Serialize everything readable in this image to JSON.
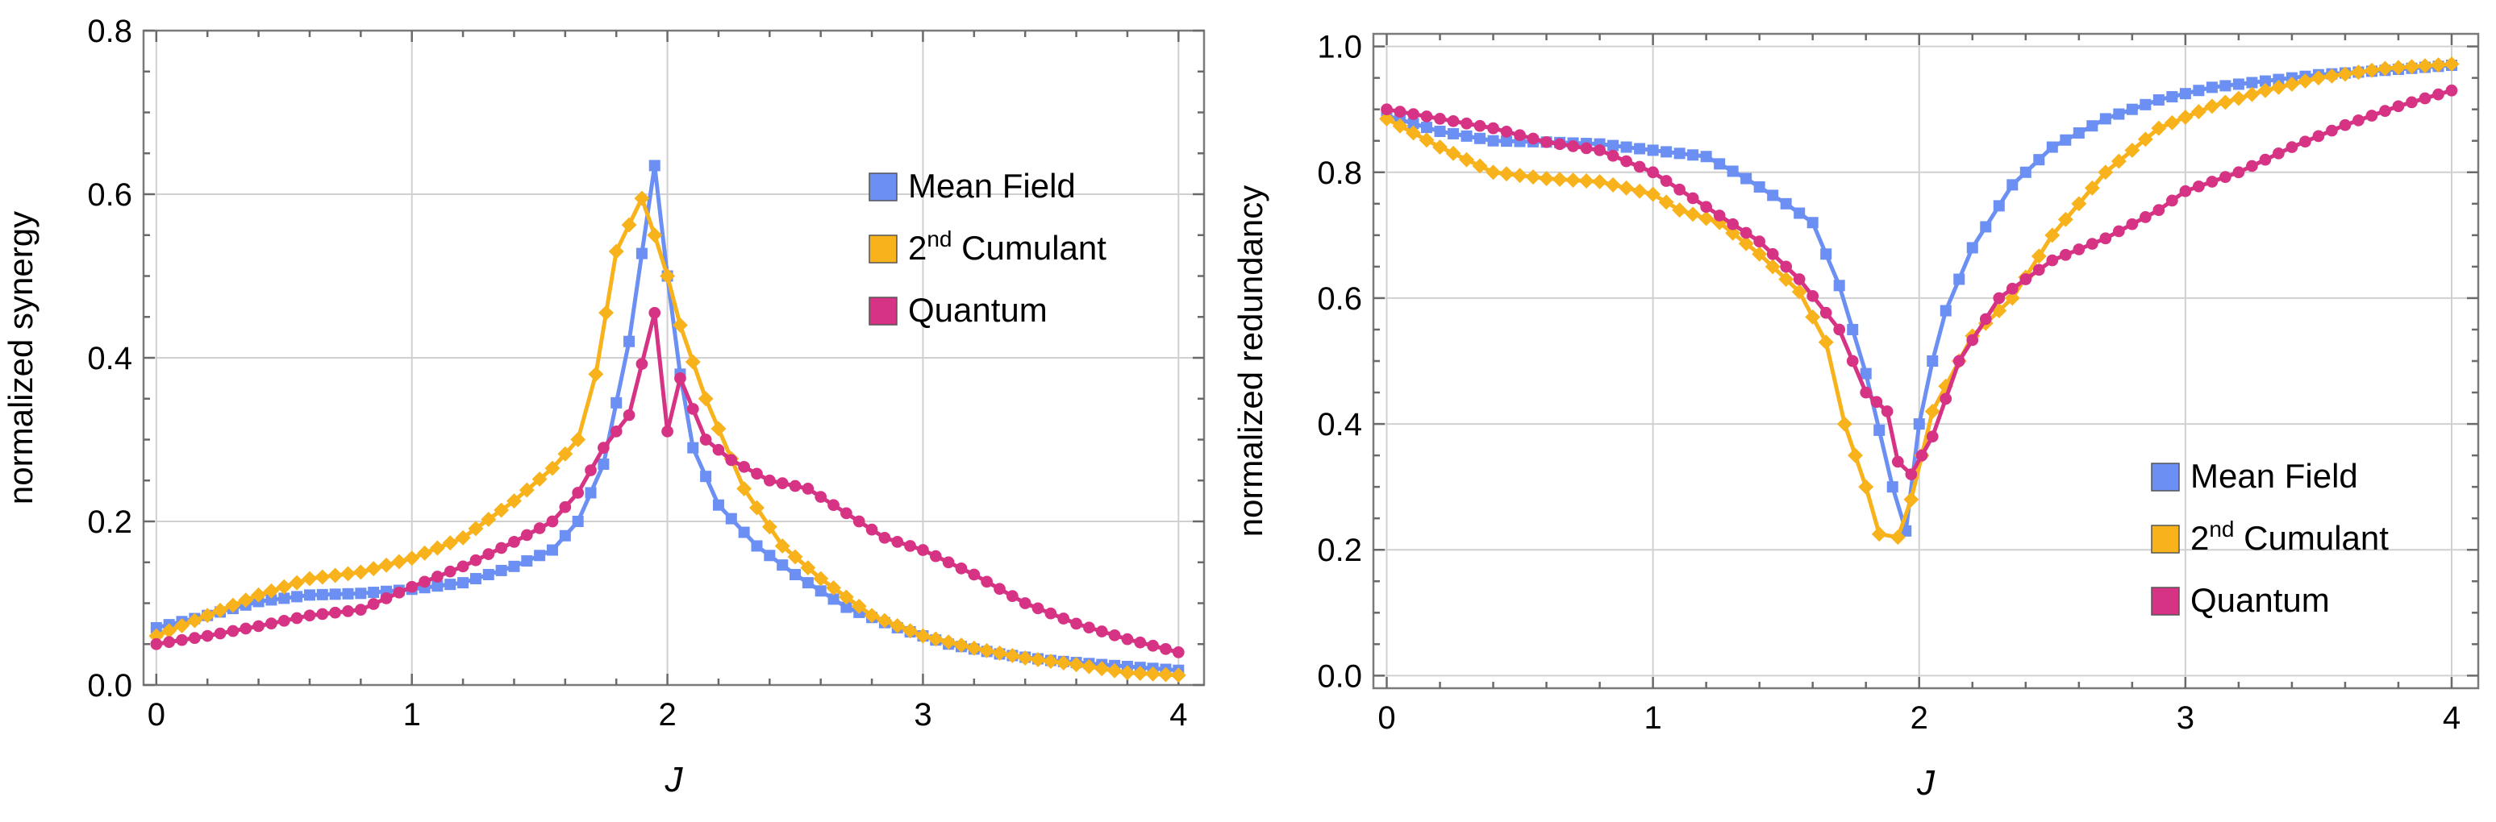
{
  "colors": {
    "mean_field": "#6b8ff2",
    "cumulant": "#f7b21c",
    "quantum": "#d63384"
  },
  "chart_data": [
    {
      "type": "line",
      "ylabel": "normalized synergy",
      "xlabel": "J",
      "xlim": [
        -0.05,
        4.1
      ],
      "ylim": [
        0,
        0.8
      ],
      "xticks": [
        "0",
        "1",
        "2",
        "3",
        "4"
      ],
      "yticks": [
        "0.0",
        "0.2",
        "0.4",
        "0.6",
        "0.8"
      ],
      "legend_position": "right",
      "legend": [
        {
          "label": "Mean Field",
          "sup": "",
          "rest": ""
        },
        {
          "label": "2",
          "sup": "nd",
          "rest": " Cumulant"
        },
        {
          "label": "Quantum",
          "sup": "",
          "rest": ""
        }
      ],
      "series": [
        {
          "name": "Mean Field",
          "marker": "square",
          "points": [
            [
              0,
              0.07
            ],
            [
              0.2,
              0.085
            ],
            [
              0.4,
              0.102
            ],
            [
              0.6,
              0.11
            ],
            [
              0.8,
              0.112
            ],
            [
              1.0,
              0.117
            ],
            [
              1.2,
              0.125
            ],
            [
              1.4,
              0.145
            ],
            [
              1.55,
              0.165
            ],
            [
              1.65,
              0.2
            ],
            [
              1.75,
              0.27
            ],
            [
              1.85,
              0.42
            ],
            [
              1.95,
              0.635
            ],
            [
              2.0,
              0.5
            ],
            [
              2.05,
              0.38
            ],
            [
              2.1,
              0.29
            ],
            [
              2.2,
              0.22
            ],
            [
              2.35,
              0.17
            ],
            [
              2.5,
              0.135
            ],
            [
              2.7,
              0.095
            ],
            [
              2.9,
              0.07
            ],
            [
              3.1,
              0.05
            ],
            [
              3.3,
              0.038
            ],
            [
              3.5,
              0.03
            ],
            [
              3.7,
              0.025
            ],
            [
              4.0,
              0.018
            ]
          ]
        },
        {
          "name": "2nd Cumulant",
          "marker": "diamond",
          "points": [
            [
              0,
              0.06
            ],
            [
              0.2,
              0.085
            ],
            [
              0.4,
              0.11
            ],
            [
              0.6,
              0.13
            ],
            [
              0.8,
              0.138
            ],
            [
              1.0,
              0.155
            ],
            [
              1.2,
              0.18
            ],
            [
              1.4,
              0.225
            ],
            [
              1.55,
              0.265
            ],
            [
              1.65,
              0.3
            ],
            [
              1.72,
              0.38
            ],
            [
              1.8,
              0.53
            ],
            [
              1.9,
              0.595
            ],
            [
              1.95,
              0.55
            ],
            [
              2.0,
              0.5
            ],
            [
              2.05,
              0.44
            ],
            [
              2.15,
              0.35
            ],
            [
              2.3,
              0.24
            ],
            [
              2.45,
              0.17
            ],
            [
              2.6,
              0.13
            ],
            [
              2.8,
              0.085
            ],
            [
              3.0,
              0.06
            ],
            [
              3.2,
              0.045
            ],
            [
              3.4,
              0.033
            ],
            [
              3.6,
              0.025
            ],
            [
              3.8,
              0.015
            ],
            [
              4.0,
              0.012
            ]
          ]
        },
        {
          "name": "Quantum",
          "marker": "circle",
          "points": [
            [
              0,
              0.05
            ],
            [
              0.2,
              0.06
            ],
            [
              0.4,
              0.072
            ],
            [
              0.6,
              0.085
            ],
            [
              0.8,
              0.092
            ],
            [
              1.0,
              0.12
            ],
            [
              1.2,
              0.145
            ],
            [
              1.4,
              0.175
            ],
            [
              1.55,
              0.2
            ],
            [
              1.65,
              0.235
            ],
            [
              1.75,
              0.29
            ],
            [
              1.85,
              0.33
            ],
            [
              1.95,
              0.455
            ],
            [
              2.0,
              0.31
            ],
            [
              2.05,
              0.375
            ],
            [
              2.15,
              0.3
            ],
            [
              2.25,
              0.275
            ],
            [
              2.4,
              0.25
            ],
            [
              2.55,
              0.24
            ],
            [
              2.7,
              0.21
            ],
            [
              2.85,
              0.18
            ],
            [
              3.0,
              0.165
            ],
            [
              3.2,
              0.135
            ],
            [
              3.4,
              0.1
            ],
            [
              3.6,
              0.075
            ],
            [
              3.8,
              0.056
            ],
            [
              4.0,
              0.04
            ]
          ]
        }
      ]
    },
    {
      "type": "line",
      "ylabel": "normalized redundancy",
      "xlabel": "J",
      "xlim": [
        -0.05,
        4.1
      ],
      "ylim": [
        -0.02,
        1.02
      ],
      "xticks": [
        "0",
        "1",
        "2",
        "3",
        "4"
      ],
      "yticks": [
        "0.0",
        "0.2",
        "0.4",
        "0.6",
        "0.8",
        "1.0"
      ],
      "legend_position": "bottom-right",
      "legend": [
        {
          "label": "Mean Field",
          "sup": "",
          "rest": ""
        },
        {
          "label": "2",
          "sup": "nd",
          "rest": " Cumulant"
        },
        {
          "label": "Quantum",
          "sup": "",
          "rest": ""
        }
      ],
      "series": [
        {
          "name": "Mean Field",
          "marker": "square",
          "points": [
            [
              0,
              0.89
            ],
            [
              0.2,
              0.865
            ],
            [
              0.4,
              0.85
            ],
            [
              0.6,
              0.848
            ],
            [
              0.8,
              0.845
            ],
            [
              1.0,
              0.835
            ],
            [
              1.2,
              0.825
            ],
            [
              1.35,
              0.79
            ],
            [
              1.5,
              0.75
            ],
            [
              1.6,
              0.72
            ],
            [
              1.7,
              0.62
            ],
            [
              1.8,
              0.48
            ],
            [
              1.9,
              0.3
            ],
            [
              1.95,
              0.23
            ],
            [
              2.0,
              0.4
            ],
            [
              2.05,
              0.5
            ],
            [
              2.1,
              0.58
            ],
            [
              2.2,
              0.68
            ],
            [
              2.35,
              0.78
            ],
            [
              2.5,
              0.84
            ],
            [
              2.7,
              0.885
            ],
            [
              2.9,
              0.915
            ],
            [
              3.1,
              0.935
            ],
            [
              3.3,
              0.945
            ],
            [
              3.5,
              0.955
            ],
            [
              3.75,
              0.962
            ],
            [
              4.0,
              0.97
            ]
          ]
        },
        {
          "name": "2nd Cumulant",
          "marker": "diamond",
          "points": [
            [
              0,
              0.885
            ],
            [
              0.2,
              0.84
            ],
            [
              0.4,
              0.8
            ],
            [
              0.6,
              0.79
            ],
            [
              0.8,
              0.785
            ],
            [
              1.0,
              0.765
            ],
            [
              1.1,
              0.74
            ],
            [
              1.25,
              0.72
            ],
            [
              1.4,
              0.67
            ],
            [
              1.55,
              0.61
            ],
            [
              1.65,
              0.53
            ],
            [
              1.72,
              0.4
            ],
            [
              1.8,
              0.3
            ],
            [
              1.85,
              0.225
            ],
            [
              1.92,
              0.22
            ],
            [
              1.97,
              0.28
            ],
            [
              2.05,
              0.42
            ],
            [
              2.2,
              0.54
            ],
            [
              2.35,
              0.6
            ],
            [
              2.5,
              0.7
            ],
            [
              2.7,
              0.8
            ],
            [
              2.9,
              0.87
            ],
            [
              3.1,
              0.905
            ],
            [
              3.3,
              0.93
            ],
            [
              3.5,
              0.95
            ],
            [
              3.75,
              0.965
            ],
            [
              4.0,
              0.972
            ]
          ]
        },
        {
          "name": "Quantum",
          "marker": "circle",
          "points": [
            [
              0,
              0.9
            ],
            [
              0.2,
              0.885
            ],
            [
              0.4,
              0.87
            ],
            [
              0.6,
              0.848
            ],
            [
              0.8,
              0.835
            ],
            [
              1.0,
              0.8
            ],
            [
              1.2,
              0.745
            ],
            [
              1.4,
              0.69
            ],
            [
              1.55,
              0.63
            ],
            [
              1.7,
              0.55
            ],
            [
              1.8,
              0.45
            ],
            [
              1.88,
              0.42
            ],
            [
              1.92,
              0.34
            ],
            [
              1.97,
              0.32
            ],
            [
              2.05,
              0.38
            ],
            [
              2.15,
              0.5
            ],
            [
              2.3,
              0.6
            ],
            [
              2.5,
              0.66
            ],
            [
              2.7,
              0.695
            ],
            [
              2.9,
              0.74
            ],
            [
              3.0,
              0.77
            ],
            [
              3.2,
              0.8
            ],
            [
              3.4,
              0.84
            ],
            [
              3.6,
              0.875
            ],
            [
              3.8,
              0.905
            ],
            [
              4.0,
              0.93
            ]
          ]
        }
      ]
    }
  ]
}
